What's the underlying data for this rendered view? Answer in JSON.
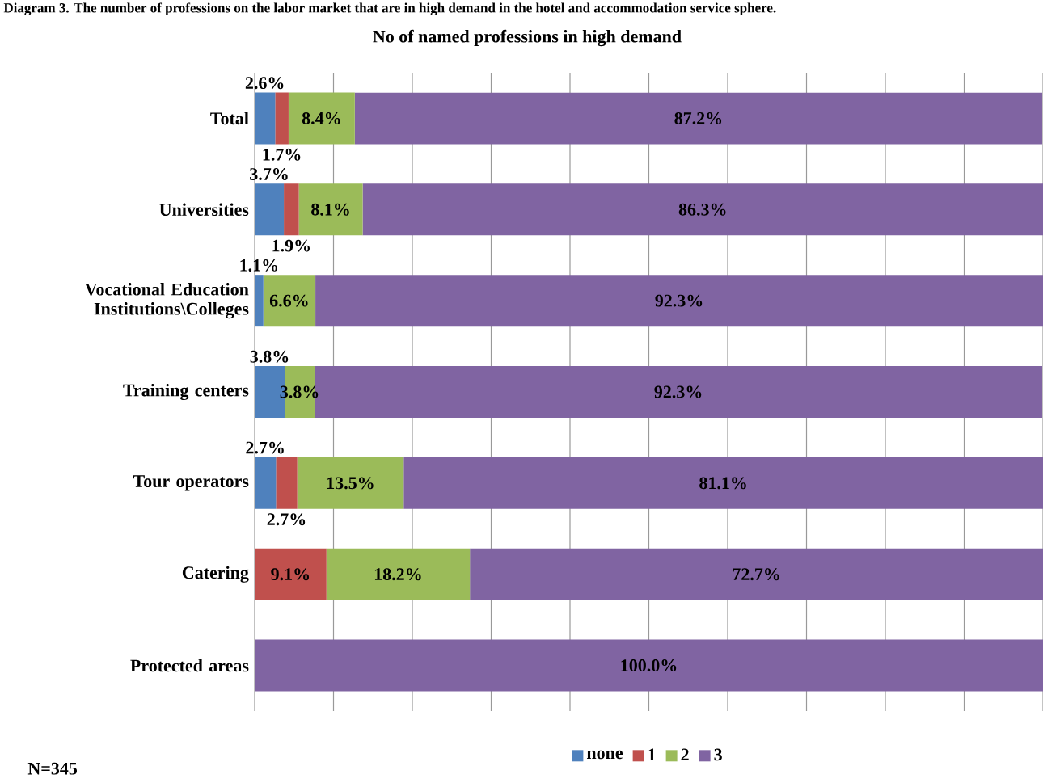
{
  "chart_data": {
    "type": "bar",
    "orientation": "horizontal",
    "stacked": true,
    "title": "No of named professions in high demand",
    "annotations": [
      "Diagram 3. The number of professions on the labor market that are in high demand in the hotel and accommodation service sphere.",
      "N=345"
    ],
    "categories": [
      "Total",
      "Universities",
      "Vocational Education Institutions\\Colleges",
      "Training centers",
      "Tour operators",
      "Catering",
      "Protected areas"
    ],
    "series": [
      {
        "name": "none",
        "color": "#4f81bd",
        "values": [
          2.6,
          3.7,
          1.1,
          3.8,
          2.7,
          null,
          null
        ],
        "value_labels": [
          "2.6%",
          "3.7%",
          "1.1%",
          "3.8%",
          "2.7%",
          null,
          null
        ]
      },
      {
        "name": "1",
        "color": "#c0504d",
        "values": [
          1.7,
          1.9,
          null,
          null,
          2.7,
          9.1,
          null
        ],
        "value_labels": [
          "1.7%",
          "1.9%",
          null,
          null,
          "2.7%",
          "9.1%",
          null
        ]
      },
      {
        "name": "2",
        "color": "#9bbb59",
        "values": [
          8.4,
          8.1,
          6.6,
          3.8,
          13.5,
          18.2,
          null
        ],
        "value_labels": [
          "8.4%",
          "8.1%",
          "6.6%",
          "3.8%",
          "13.5%",
          "18.2%",
          null
        ]
      },
      {
        "name": "3",
        "color": "#8064a2",
        "values": [
          87.2,
          86.3,
          92.3,
          92.3,
          81.1,
          72.7,
          100.0
        ],
        "value_labels": [
          "87.2%",
          "86.3%",
          "92.3%",
          "92.3%",
          "81.1%",
          "72.7%",
          "100.0%"
        ]
      }
    ],
    "xlim": [
      0,
      100
    ],
    "xticks": [
      {
        "value": 0,
        "label": null
      },
      {
        "value": 10,
        "label": null
      },
      {
        "value": 20,
        "label": null
      },
      {
        "value": 30,
        "label": null
      },
      {
        "value": 40,
        "label": null
      },
      {
        "value": 50,
        "label": null
      },
      {
        "value": 60,
        "label": null
      },
      {
        "value": 70,
        "label": null
      },
      {
        "value": 80,
        "label": null
      },
      {
        "value": 90,
        "label": null
      },
      {
        "value": 100,
        "label": null
      }
    ],
    "grid": "x",
    "legend": "bottom",
    "tick_labels": "y"
  }
}
